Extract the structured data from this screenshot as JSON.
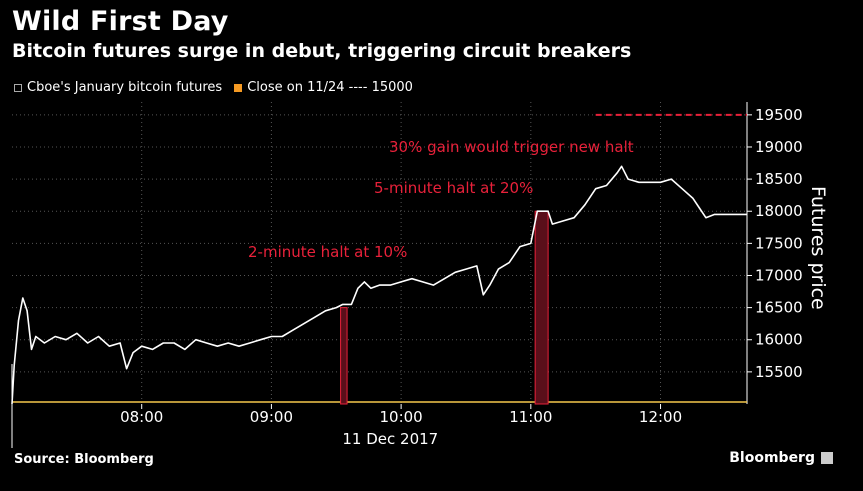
{
  "header": {
    "title": "Wild First Day",
    "subtitle": "Bitcoin futures surge in debut, triggering circuit breakers"
  },
  "legend": [
    {
      "label": "Cboe's January bitcoin futures",
      "color": "#ffffff",
      "icon": "line-marker-icon"
    },
    {
      "label": "Close on 11/24 ---- 15000",
      "color": "#f59a23",
      "icon": "square-swatch-icon"
    }
  ],
  "footer": {
    "source": "Source: Bloomberg",
    "brand": "Bloomberg"
  },
  "colors": {
    "series": "#ffffff",
    "close": "#f59a23",
    "halt": "#e8213a",
    "grid": "#555555"
  },
  "chart_data": {
    "type": "line",
    "title": "Wild First Day",
    "subtitle": "Bitcoin futures surge in debut, triggering circuit breakers",
    "ylabel": "Futures price",
    "xlabel": "11 Dec 2017",
    "x_ticks": [
      "08:00",
      "09:00",
      "10:00",
      "11:00",
      "12:00"
    ],
    "y_ticks": [
      15500,
      16000,
      16500,
      17000,
      17500,
      18000,
      18500,
      19000,
      19500
    ],
    "ylim": [
      15000,
      19700
    ],
    "xlim": [
      "07:00",
      "12:40"
    ],
    "grid": true,
    "series": [
      {
        "name": "Cboe's January bitcoin futures",
        "points": [
          [
            "07:00",
            15000
          ],
          [
            "07:01",
            15600
          ],
          [
            "07:03",
            16300
          ],
          [
            "07:05",
            16650
          ],
          [
            "07:07",
            16450
          ],
          [
            "07:09",
            15850
          ],
          [
            "07:11",
            16050
          ],
          [
            "07:15",
            15950
          ],
          [
            "07:20",
            16050
          ],
          [
            "07:25",
            16000
          ],
          [
            "07:30",
            16100
          ],
          [
            "07:35",
            15950
          ],
          [
            "07:40",
            16050
          ],
          [
            "07:45",
            15900
          ],
          [
            "07:50",
            15950
          ],
          [
            "07:53",
            15550
          ],
          [
            "07:56",
            15800
          ],
          [
            "08:00",
            15900
          ],
          [
            "08:05",
            15850
          ],
          [
            "08:10",
            15950
          ],
          [
            "08:15",
            15950
          ],
          [
            "08:20",
            15850
          ],
          [
            "08:25",
            16000
          ],
          [
            "08:30",
            15950
          ],
          [
            "08:35",
            15900
          ],
          [
            "08:40",
            15950
          ],
          [
            "08:45",
            15900
          ],
          [
            "08:50",
            15950
          ],
          [
            "08:55",
            16000
          ],
          [
            "09:00",
            16050
          ],
          [
            "09:05",
            16050
          ],
          [
            "09:10",
            16150
          ],
          [
            "09:15",
            16250
          ],
          [
            "09:20",
            16350
          ],
          [
            "09:25",
            16450
          ],
          [
            "09:30",
            16500
          ],
          [
            "09:33",
            16550
          ],
          [
            "09:37",
            16550
          ],
          [
            "09:40",
            16800
          ],
          [
            "09:43",
            16900
          ],
          [
            "09:46",
            16800
          ],
          [
            "09:50",
            16850
          ],
          [
            "09:55",
            16850
          ],
          [
            "10:00",
            16900
          ],
          [
            "10:05",
            16950
          ],
          [
            "10:10",
            16900
          ],
          [
            "10:15",
            16850
          ],
          [
            "10:20",
            16950
          ],
          [
            "10:25",
            17050
          ],
          [
            "10:30",
            17100
          ],
          [
            "10:35",
            17150
          ],
          [
            "10:38",
            16700
          ],
          [
            "10:41",
            16850
          ],
          [
            "10:45",
            17100
          ],
          [
            "10:50",
            17200
          ],
          [
            "10:55",
            17450
          ],
          [
            "11:00",
            17500
          ],
          [
            "11:03",
            18000
          ],
          [
            "11:08",
            18000
          ],
          [
            "11:10",
            17800
          ],
          [
            "11:15",
            17850
          ],
          [
            "11:20",
            17900
          ],
          [
            "11:25",
            18100
          ],
          [
            "11:30",
            18350
          ],
          [
            "11:35",
            18400
          ],
          [
            "11:40",
            18600
          ],
          [
            "11:42",
            18700
          ],
          [
            "11:45",
            18500
          ],
          [
            "11:50",
            18450
          ],
          [
            "11:55",
            18450
          ],
          [
            "12:00",
            18450
          ],
          [
            "12:05",
            18500
          ],
          [
            "12:10",
            18350
          ],
          [
            "12:15",
            18200
          ],
          [
            "12:18",
            18050
          ],
          [
            "12:21",
            17900
          ],
          [
            "12:25",
            17950
          ],
          [
            "12:30",
            17950
          ],
          [
            "12:40",
            17950
          ]
        ]
      },
      {
        "name": "Close on 11/24 ---- 15000",
        "value": 15000
      }
    ],
    "halts": [
      {
        "label": "2-minute halt at 10%",
        "start": "09:32",
        "end": "09:35",
        "level": 16500
      },
      {
        "label": "5-minute halt at 20%",
        "start": "11:02",
        "end": "11:08",
        "level": 18000
      }
    ],
    "threshold": {
      "label": "30% gain would trigger new halt",
      "value": 19500,
      "from": "11:30"
    }
  }
}
